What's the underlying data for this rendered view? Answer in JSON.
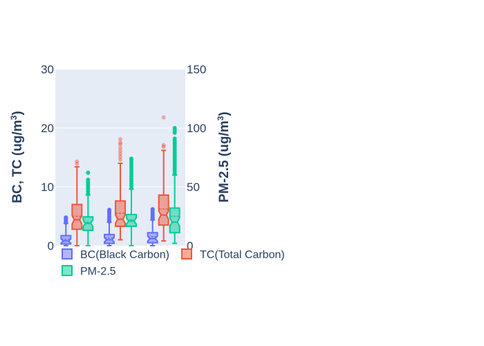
{
  "chart_data": {
    "type": "box",
    "title": "",
    "ylabel_left": {
      "text": "BC, TC (ug/m",
      "sup": "3",
      "close": ")"
    },
    "ylabel_right": {
      "text": "PM-2.5 (ug/m",
      "sup": "3",
      "close": ")"
    },
    "ylim_left": [
      0,
      30
    ],
    "ylim_right": [
      0,
      150
    ],
    "left_ticks": [
      "0",
      "10",
      "20",
      "30"
    ],
    "right_ticks": [
      "0",
      "50",
      "100",
      "150"
    ],
    "grid": true,
    "legend_position": "bottom",
    "groups": 3,
    "series": [
      {
        "name": "BC(Black Carbon)",
        "axis": "left",
        "color": "#636efa",
        "boxes": [
          {
            "q1": 0.3,
            "median": 0.8,
            "mean": 1.1,
            "q3": 1.7,
            "lowerfence": 0,
            "upperfence": 3.8,
            "outliers": [
              3.9,
              4.1,
              4.3,
              4.5,
              4.7,
              4.8
            ]
          },
          {
            "q1": 0.4,
            "median": 1.0,
            "mean": 1.3,
            "q3": 1.9,
            "lowerfence": 0,
            "upperfence": 4.0,
            "outliers": [
              4.1,
              4.4,
              4.7,
              5.0,
              5.3,
              5.6,
              5.9,
              6.1
            ]
          },
          {
            "q1": 0.5,
            "median": 1.2,
            "mean": 1.5,
            "q3": 2.2,
            "lowerfence": 0,
            "upperfence": 4.4,
            "outliers": [
              4.5,
              4.8,
              5.1,
              5.4,
              5.7,
              6.0,
              6.2
            ]
          }
        ]
      },
      {
        "name": "TC(Total Carbon)",
        "axis": "left",
        "color": "#ef553b",
        "boxes": [
          {
            "q1": 2.8,
            "median": 4.4,
            "mean": 5.0,
            "q3": 7.0,
            "lowerfence": 0,
            "upperfence": 13.4,
            "outliers": [
              13.9,
              14.3
            ]
          },
          {
            "q1": 3.3,
            "median": 4.5,
            "mean": 5.5,
            "q3": 7.6,
            "lowerfence": 1.0,
            "upperfence": 14.0,
            "outliers": [
              14.6,
              15.1,
              15.6,
              16.1,
              16.6,
              17.2,
              17.5,
              18.1
            ]
          },
          {
            "q1": 3.5,
            "median": 5.2,
            "mean": 6.2,
            "q3": 8.6,
            "lowerfence": 0.8,
            "upperfence": 16.2,
            "outliers": [
              16.8,
              17.1,
              21.8
            ]
          }
        ]
      },
      {
        "name": "PM-2.5",
        "axis": "right",
        "color": "#00cc96",
        "boxes": [
          {
            "q1": 13,
            "median": 19,
            "mean": 20,
            "q3": 24.5,
            "lowerfence": 0,
            "upperfence": 43,
            "outliers": [
              44,
              46,
              48,
              50,
              52,
              54,
              56,
              62
            ]
          },
          {
            "q1": 16.5,
            "median": 21,
            "mean": 22,
            "q3": 26.5,
            "lowerfence": 0,
            "upperfence": 48,
            "outliers": [
              49,
              51,
              53,
              55,
              57,
              59,
              61,
              63,
              65,
              67,
              69,
              71,
              73,
              74
            ]
          },
          {
            "q1": 11,
            "median": 20,
            "mean": 25,
            "q3": 32,
            "lowerfence": 2,
            "upperfence": 60,
            "outliers": [
              61,
              63,
              65,
              67,
              69,
              71,
              73,
              75,
              77,
              79,
              81,
              83,
              85,
              87,
              89,
              91,
              96,
              98,
              100
            ]
          }
        ]
      }
    ]
  }
}
